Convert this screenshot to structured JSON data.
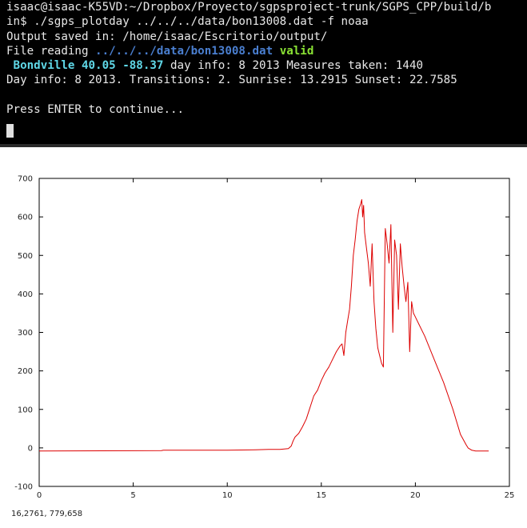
{
  "terminal": {
    "line1": "isaac@isaac-K55VD:~/Dropbox/Proyecto/sgpsproject-trunk/SGPS_CPP/build/b",
    "line2": "in$ ./sgps_plotday ../../../data/bon13008.dat -f noaa",
    "line3": "Output saved in: /home/isaac/Escritorio/output/",
    "line4_prefix": "File reading ",
    "line4_path": "../../../data/bon13008.dat",
    "line4_status": "valid",
    "line5_station": " Bondville 40.05 -88.37",
    "line5_rest": " day info: 8 2013 Measures taken: 1440",
    "line6": "Day info: 8 2013. Transitions: 2. Sunrise: 13.2915 Sunset: 22.7585",
    "line7": "",
    "line8": "Press ENTER to continue..."
  },
  "colors": {
    "terminal_bg": "#000000",
    "terminal_text": "#e8e8e8",
    "station_cyan": "#5fd7e6",
    "path_blue": "#4a7fd0",
    "valid_green": "#8ae234",
    "series_red": "#dd0000"
  },
  "coord_readout": "16,2761,  779,658",
  "chart_data": {
    "type": "line",
    "title": "",
    "xlabel": "",
    "ylabel": "",
    "xlim": [
      0,
      25
    ],
    "ylim": [
      -100,
      700
    ],
    "xticks": [
      0,
      5,
      10,
      15,
      20,
      25
    ],
    "yticks": [
      -100,
      0,
      100,
      200,
      300,
      400,
      500,
      600,
      700
    ],
    "grid": false,
    "series": [
      {
        "name": "",
        "color": "#dd0000",
        "x": [
          0,
          6.5,
          6.6,
          10,
          11.5,
          12.2,
          12.8,
          13.25,
          13.4,
          13.5,
          13.6,
          13.8,
          14.0,
          14.2,
          14.4,
          14.6,
          14.8,
          15.0,
          15.2,
          15.4,
          15.6,
          15.8,
          16.0,
          16.1,
          16.2,
          16.3,
          16.4,
          16.5,
          16.6,
          16.7,
          16.8,
          16.9,
          17.0,
          17.1,
          17.15,
          17.2,
          17.25,
          17.3,
          17.4,
          17.5,
          17.6,
          17.7,
          17.8,
          17.9,
          18.0,
          18.1,
          18.2,
          18.3,
          18.4,
          18.5,
          18.6,
          18.7,
          18.8,
          18.9,
          19.0,
          19.1,
          19.2,
          19.3,
          19.4,
          19.5,
          19.6,
          19.7,
          19.8,
          19.9,
          20.0,
          20.2,
          20.5,
          21.0,
          21.5,
          22.0,
          22.4,
          22.7,
          22.8,
          23.0,
          23.2,
          23.5,
          23.9
        ],
        "y": [
          -8,
          -7,
          -6,
          -6,
          -5,
          -4,
          -4,
          -2,
          5,
          18,
          28,
          38,
          55,
          75,
          105,
          135,
          150,
          175,
          195,
          210,
          230,
          250,
          265,
          270,
          240,
          300,
          330,
          360,
          420,
          500,
          540,
          590,
          620,
          635,
          645,
          600,
          630,
          560,
          520,
          480,
          420,
          530,
          380,
          310,
          260,
          240,
          220,
          210,
          570,
          530,
          480,
          580,
          300,
          540,
          500,
          360,
          530,
          470,
          420,
          380,
          430,
          250,
          380,
          350,
          340,
          320,
          290,
          230,
          170,
          100,
          35,
          8,
          0,
          -6,
          -8,
          -8,
          -8
        ]
      }
    ]
  }
}
